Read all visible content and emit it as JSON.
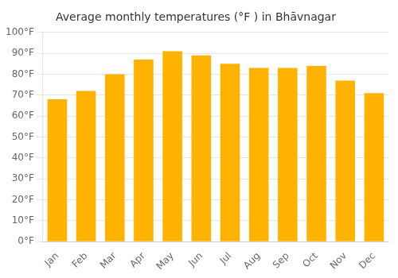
{
  "chart_data": {
    "type": "bar",
    "title": "Average monthly temperatures (°F ) in Bhāvnagar",
    "categories": [
      "Jan",
      "Feb",
      "Mar",
      "Apr",
      "May",
      "Jun",
      "Jul",
      "Aug",
      "Sep",
      "Oct",
      "Nov",
      "Dec"
    ],
    "values": [
      68,
      72,
      80,
      87,
      91,
      89,
      85,
      83,
      83,
      84,
      77,
      71
    ],
    "color": "#FFB300",
    "ylim": [
      0,
      100
    ],
    "yticks": [
      {
        "value": 0,
        "label": "0°F"
      },
      {
        "value": 10,
        "label": "10°F"
      },
      {
        "value": 20,
        "label": "20°F"
      },
      {
        "value": 30,
        "label": "30°F"
      },
      {
        "value": 40,
        "label": "40°F"
      },
      {
        "value": 50,
        "label": "50°F"
      },
      {
        "value": 60,
        "label": "60°F"
      },
      {
        "value": 70,
        "label": "70°F"
      },
      {
        "value": 80,
        "label": "80°F"
      },
      {
        "value": 90,
        "label": "90°F"
      },
      {
        "value": 100,
        "label": "100°F"
      }
    ],
    "grid": true
  }
}
